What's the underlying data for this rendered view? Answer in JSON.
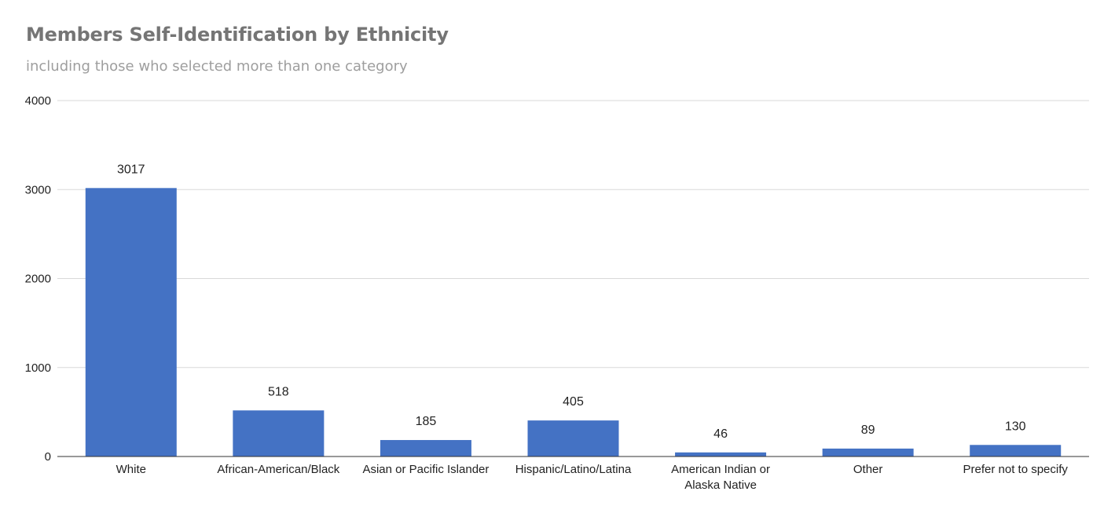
{
  "chart_data": {
    "type": "bar",
    "title": "Members Self-Identification by Ethnicity",
    "subtitle": "including those who selected more than one category",
    "xlabel": "",
    "ylabel": "",
    "categories": [
      "White",
      "African-American/Black",
      "Asian or Pacific Islander",
      "Hispanic/Latino/Latina",
      "American Indian or Alaska Native",
      "Other",
      "Prefer not to specify"
    ],
    "values": [
      3017,
      518,
      185,
      405,
      46,
      89,
      130
    ],
    "ylim": [
      0,
      4000
    ],
    "yticks": [
      "0",
      "1000",
      "2000",
      "3000",
      "4000"
    ],
    "grid": true,
    "legend": "none",
    "bar_color": "#4472C4",
    "gridline_color": "#d9d9d9",
    "axis_color": "#333333"
  }
}
